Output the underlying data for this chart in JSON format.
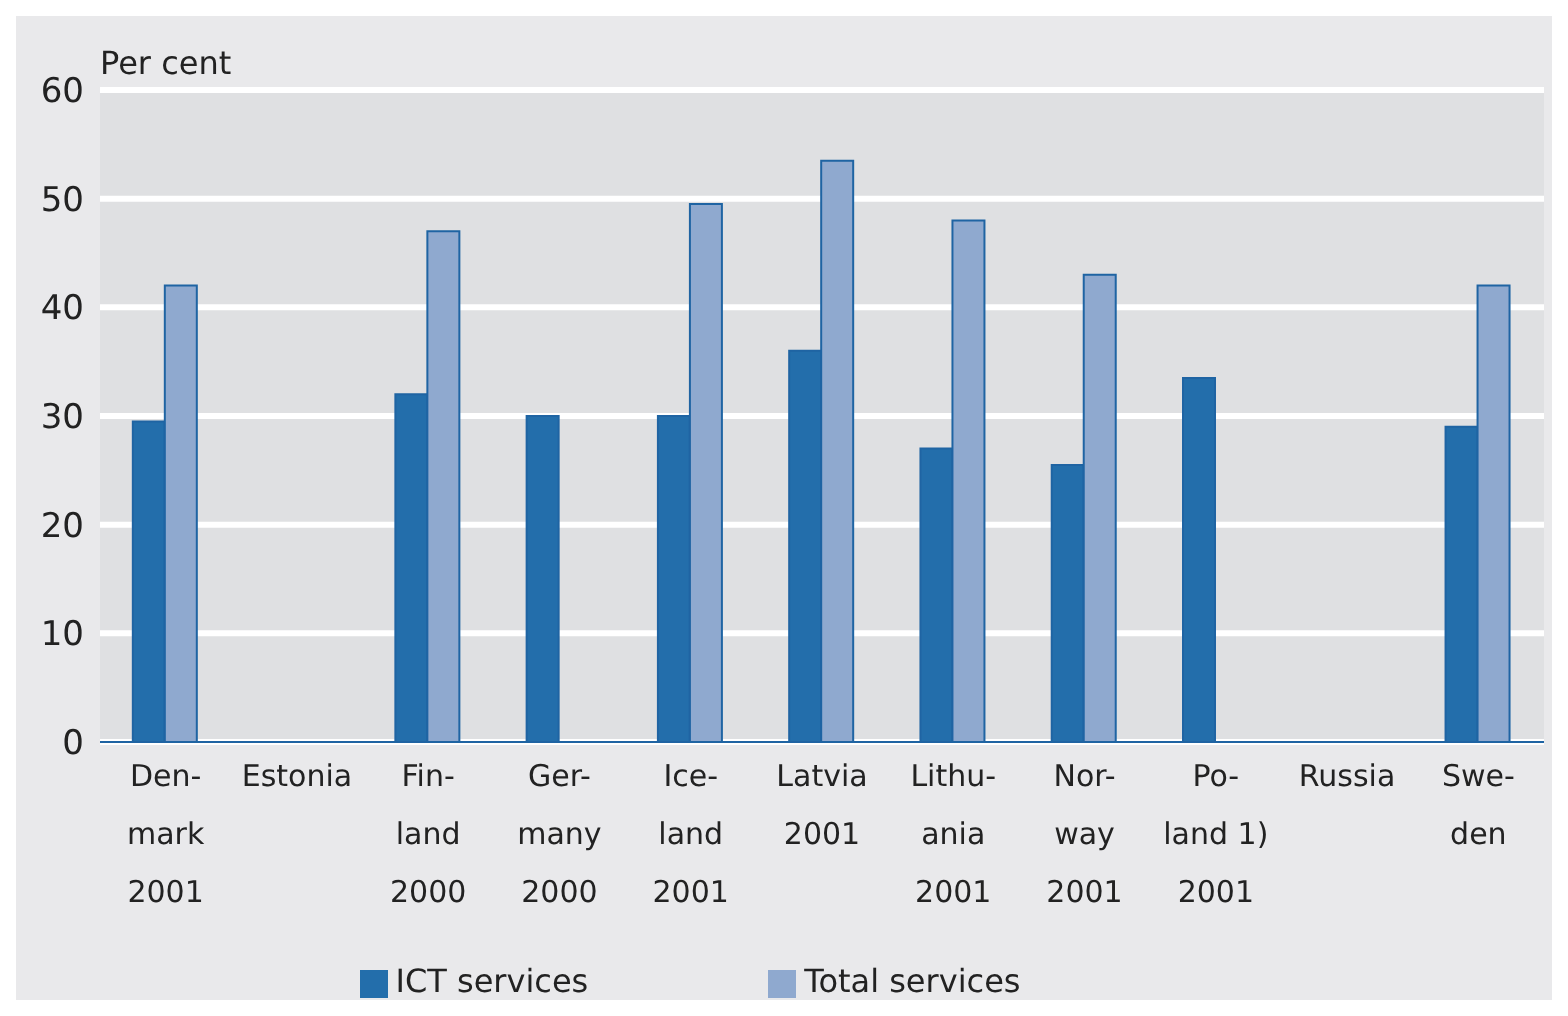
{
  "chart_data": {
    "type": "bar",
    "ylabel": "Per cent",
    "categories": [
      "Den-\nmark\n2001",
      "Estonia",
      "Fin-\nland\n2000",
      "Ger-\nmany\n2000",
      "Ice-\nland\n2001",
      "Latvia\n2001",
      "Lithu-\nania\n2001",
      "Nor-\nway\n2001",
      "Po-\nland 1)\n2001",
      "Russia",
      "Swe-\nden"
    ],
    "series": [
      {
        "name": "ICT services",
        "color": "#236eab",
        "values": [
          29.5,
          null,
          32,
          30,
          30,
          36,
          27,
          25.5,
          33.5,
          null,
          29
        ]
      },
      {
        "name": "Total services",
        "color": "#8fa9cf",
        "values": [
          42,
          null,
          47,
          null,
          49.5,
          53.5,
          48,
          43,
          null,
          null,
          42
        ]
      }
    ],
    "ylim": [
      0,
      60
    ],
    "yticks": [
      0,
      10,
      20,
      30,
      40,
      50,
      60
    ],
    "grid": "y",
    "legend": "bottom"
  }
}
